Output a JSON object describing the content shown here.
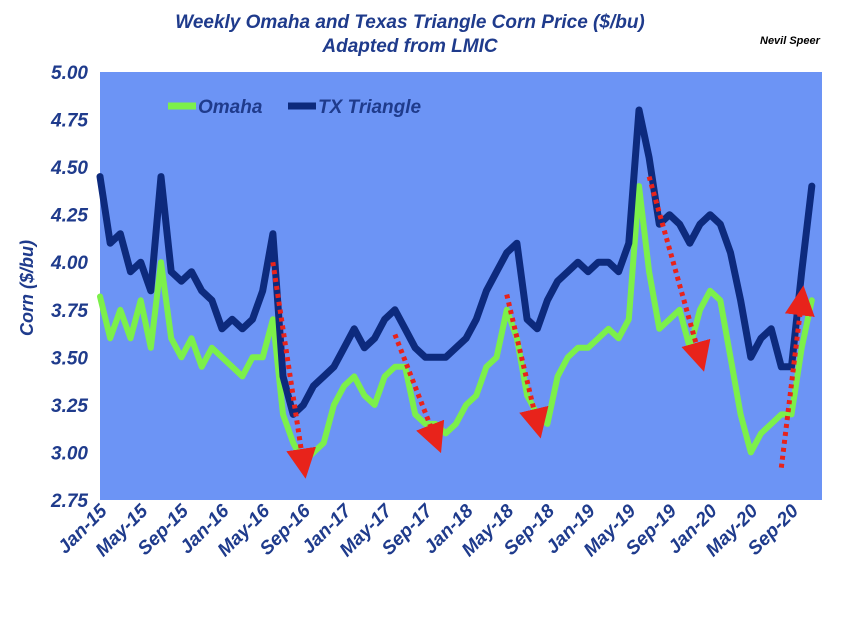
{
  "chart_data": {
    "type": "line",
    "title": "Weekly Omaha  and Texas Triangle Corn Price ($/bu)",
    "subtitle": "Adapted from LMIC",
    "author": "Nevil Speer",
    "ylabel": "Corn ($/bu)",
    "ylim": [
      2.75,
      5.0
    ],
    "yticks": [
      "5.00",
      "4.75",
      "4.50",
      "4.25",
      "4.00",
      "3.75",
      "3.50",
      "3.25",
      "3.00",
      "2.75"
    ],
    "xlim": [
      "2015-01",
      "2020-12"
    ],
    "xticks": [
      {
        "label": "Jan-15",
        "date": "2015-01"
      },
      {
        "label": "May-15",
        "date": "2015-05"
      },
      {
        "label": "Sep-15",
        "date": "2015-09"
      },
      {
        "label": "Jan-16",
        "date": "2016-01"
      },
      {
        "label": "May-16",
        "date": "2016-05"
      },
      {
        "label": "Sep-16",
        "date": "2016-09"
      },
      {
        "label": "Jan-17",
        "date": "2017-01"
      },
      {
        "label": "May-17",
        "date": "2017-05"
      },
      {
        "label": "Sep-17",
        "date": "2017-09"
      },
      {
        "label": "Jan-18",
        "date": "2018-01"
      },
      {
        "label": "May-18",
        "date": "2018-05"
      },
      {
        "label": "Sep-18",
        "date": "2018-09"
      },
      {
        "label": "Jan-19",
        "date": "2019-01"
      },
      {
        "label": "May-19",
        "date": "2019-05"
      },
      {
        "label": "Sep-19",
        "date": "2019-09"
      },
      {
        "label": "Jan-20",
        "date": "2020-01"
      },
      {
        "label": "May-20",
        "date": "2020-05"
      },
      {
        "label": "Sep-20",
        "date": "2020-09"
      }
    ],
    "legend_position": "top-left",
    "grid": false,
    "background_color": "#6c94f5",
    "series": [
      {
        "name": "Omaha",
        "color": "#7cf04a",
        "points": [
          [
            "2015-01",
            3.82
          ],
          [
            "2015-02",
            3.6
          ],
          [
            "2015-03",
            3.75
          ],
          [
            "2015-04",
            3.6
          ],
          [
            "2015-05",
            3.8
          ],
          [
            "2015-06",
            3.55
          ],
          [
            "2015-07",
            4.0
          ],
          [
            "2015-08",
            3.6
          ],
          [
            "2015-09",
            3.5
          ],
          [
            "2015-10",
            3.6
          ],
          [
            "2015-11",
            3.45
          ],
          [
            "2015-12",
            3.55
          ],
          [
            "2016-01",
            3.5
          ],
          [
            "2016-02",
            3.45
          ],
          [
            "2016-03",
            3.4
          ],
          [
            "2016-04",
            3.5
          ],
          [
            "2016-05",
            3.5
          ],
          [
            "2016-06",
            3.7
          ],
          [
            "2016-07",
            3.2
          ],
          [
            "2016-08",
            3.05
          ],
          [
            "2016-09",
            2.95
          ],
          [
            "2016-10",
            3.0
          ],
          [
            "2016-11",
            3.05
          ],
          [
            "2016-12",
            3.25
          ],
          [
            "2017-01",
            3.35
          ],
          [
            "2017-02",
            3.4
          ],
          [
            "2017-03",
            3.3
          ],
          [
            "2017-04",
            3.25
          ],
          [
            "2017-05",
            3.4
          ],
          [
            "2017-06",
            3.45
          ],
          [
            "2017-07",
            3.45
          ],
          [
            "2017-08",
            3.2
          ],
          [
            "2017-09",
            3.15
          ],
          [
            "2017-10",
            3.15
          ],
          [
            "2017-11",
            3.1
          ],
          [
            "2017-12",
            3.15
          ],
          [
            "2018-01",
            3.25
          ],
          [
            "2018-02",
            3.3
          ],
          [
            "2018-03",
            3.45
          ],
          [
            "2018-04",
            3.5
          ],
          [
            "2018-05",
            3.75
          ],
          [
            "2018-06",
            3.6
          ],
          [
            "2018-07",
            3.3
          ],
          [
            "2018-08",
            3.2
          ],
          [
            "2018-09",
            3.15
          ],
          [
            "2018-10",
            3.4
          ],
          [
            "2018-11",
            3.5
          ],
          [
            "2018-12",
            3.55
          ],
          [
            "2019-01",
            3.55
          ],
          [
            "2019-02",
            3.6
          ],
          [
            "2019-03",
            3.65
          ],
          [
            "2019-04",
            3.6
          ],
          [
            "2019-05",
            3.7
          ],
          [
            "2019-06",
            4.4
          ],
          [
            "2019-07",
            3.95
          ],
          [
            "2019-08",
            3.65
          ],
          [
            "2019-09",
            3.7
          ],
          [
            "2019-10",
            3.75
          ],
          [
            "2019-11",
            3.55
          ],
          [
            "2019-12",
            3.75
          ],
          [
            "2020-01",
            3.85
          ],
          [
            "2020-02",
            3.8
          ],
          [
            "2020-03",
            3.5
          ],
          [
            "2020-04",
            3.2
          ],
          [
            "2020-05",
            3.0
          ],
          [
            "2020-06",
            3.1
          ],
          [
            "2020-07",
            3.15
          ],
          [
            "2020-08",
            3.2
          ],
          [
            "2020-09",
            3.2
          ],
          [
            "2020-10",
            3.55
          ],
          [
            "2020-11",
            3.8
          ]
        ]
      },
      {
        "name": "TX Triangle",
        "color": "#0d2a7d",
        "points": [
          [
            "2015-01",
            4.45
          ],
          [
            "2015-02",
            4.1
          ],
          [
            "2015-03",
            4.15
          ],
          [
            "2015-04",
            3.95
          ],
          [
            "2015-05",
            4.0
          ],
          [
            "2015-06",
            3.85
          ],
          [
            "2015-07",
            4.45
          ],
          [
            "2015-08",
            3.95
          ],
          [
            "2015-09",
            3.9
          ],
          [
            "2015-10",
            3.95
          ],
          [
            "2015-11",
            3.85
          ],
          [
            "2015-12",
            3.8
          ],
          [
            "2016-01",
            3.65
          ],
          [
            "2016-02",
            3.7
          ],
          [
            "2016-03",
            3.65
          ],
          [
            "2016-04",
            3.7
          ],
          [
            "2016-05",
            3.85
          ],
          [
            "2016-06",
            4.15
          ],
          [
            "2016-07",
            3.4
          ],
          [
            "2016-08",
            3.2
          ],
          [
            "2016-09",
            3.25
          ],
          [
            "2016-10",
            3.35
          ],
          [
            "2016-11",
            3.4
          ],
          [
            "2016-12",
            3.45
          ],
          [
            "2017-01",
            3.55
          ],
          [
            "2017-02",
            3.65
          ],
          [
            "2017-03",
            3.55
          ],
          [
            "2017-04",
            3.6
          ],
          [
            "2017-05",
            3.7
          ],
          [
            "2017-06",
            3.75
          ],
          [
            "2017-07",
            3.65
          ],
          [
            "2017-08",
            3.55
          ],
          [
            "2017-09",
            3.5
          ],
          [
            "2017-10",
            3.5
          ],
          [
            "2017-11",
            3.5
          ],
          [
            "2017-12",
            3.55
          ],
          [
            "2018-01",
            3.6
          ],
          [
            "2018-02",
            3.7
          ],
          [
            "2018-03",
            3.85
          ],
          [
            "2018-04",
            3.95
          ],
          [
            "2018-05",
            4.05
          ],
          [
            "2018-06",
            4.1
          ],
          [
            "2018-07",
            3.7
          ],
          [
            "2018-08",
            3.65
          ],
          [
            "2018-09",
            3.8
          ],
          [
            "2018-10",
            3.9
          ],
          [
            "2018-11",
            3.95
          ],
          [
            "2018-12",
            4.0
          ],
          [
            "2019-01",
            3.95
          ],
          [
            "2019-02",
            4.0
          ],
          [
            "2019-03",
            4.0
          ],
          [
            "2019-04",
            3.95
          ],
          [
            "2019-05",
            4.1
          ],
          [
            "2019-06",
            4.8
          ],
          [
            "2019-07",
            4.55
          ],
          [
            "2019-08",
            4.2
          ],
          [
            "2019-09",
            4.25
          ],
          [
            "2019-10",
            4.2
          ],
          [
            "2019-11",
            4.1
          ],
          [
            "2019-12",
            4.2
          ],
          [
            "2020-01",
            4.25
          ],
          [
            "2020-02",
            4.2
          ],
          [
            "2020-03",
            4.05
          ],
          [
            "2020-04",
            3.8
          ],
          [
            "2020-05",
            3.5
          ],
          [
            "2020-06",
            3.6
          ],
          [
            "2020-07",
            3.65
          ],
          [
            "2020-08",
            3.45
          ],
          [
            "2020-09",
            3.45
          ],
          [
            "2020-10",
            3.95
          ],
          [
            "2020-11",
            4.4
          ]
        ]
      }
    ],
    "annotations": [
      {
        "type": "arrow",
        "color": "#e8231b",
        "from": [
          "2016-06",
          4.0
        ],
        "to": [
          "2016-09",
          2.94
        ]
      },
      {
        "type": "arrow",
        "color": "#e8231b",
        "from": [
          "2017-06",
          3.62
        ],
        "to": [
          "2017-10",
          3.07
        ]
      },
      {
        "type": "arrow",
        "color": "#e8231b",
        "from": [
          "2018-05",
          3.83
        ],
        "to": [
          "2018-08",
          3.15
        ]
      },
      {
        "type": "arrow",
        "color": "#e8231b",
        "from": [
          "2019-07",
          4.45
        ],
        "to": [
          "2019-12",
          3.5
        ]
      },
      {
        "type": "arrow",
        "color": "#e8231b",
        "from": [
          "2020-08",
          2.92
        ],
        "to": [
          "2020-10",
          3.8
        ]
      }
    ]
  }
}
